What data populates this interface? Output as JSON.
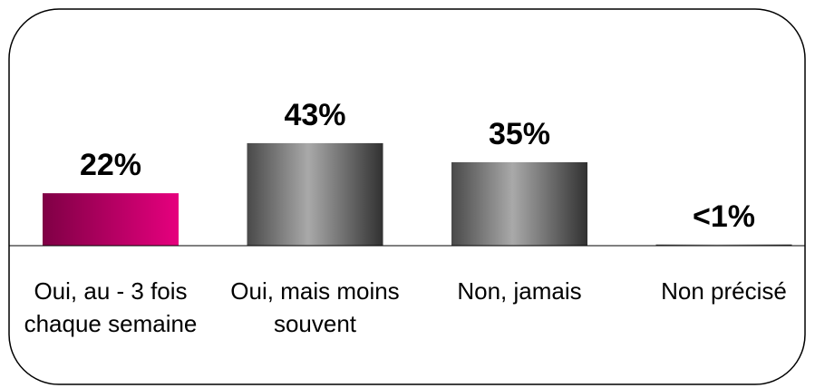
{
  "chart_data": {
    "type": "bar",
    "categories": [
      "Oui, au - 3 fois chaque semaine",
      "Oui, mais moins souvent",
      "Non, jamais",
      "Non précisé"
    ],
    "values": [
      22,
      43,
      35,
      0.5
    ],
    "value_labels": [
      "22%",
      "43%",
      "35%",
      "<1%"
    ],
    "colors": [
      "#e6007e",
      "#7a7a7a",
      "#7a7a7a",
      "#7a7a7a"
    ]
  }
}
